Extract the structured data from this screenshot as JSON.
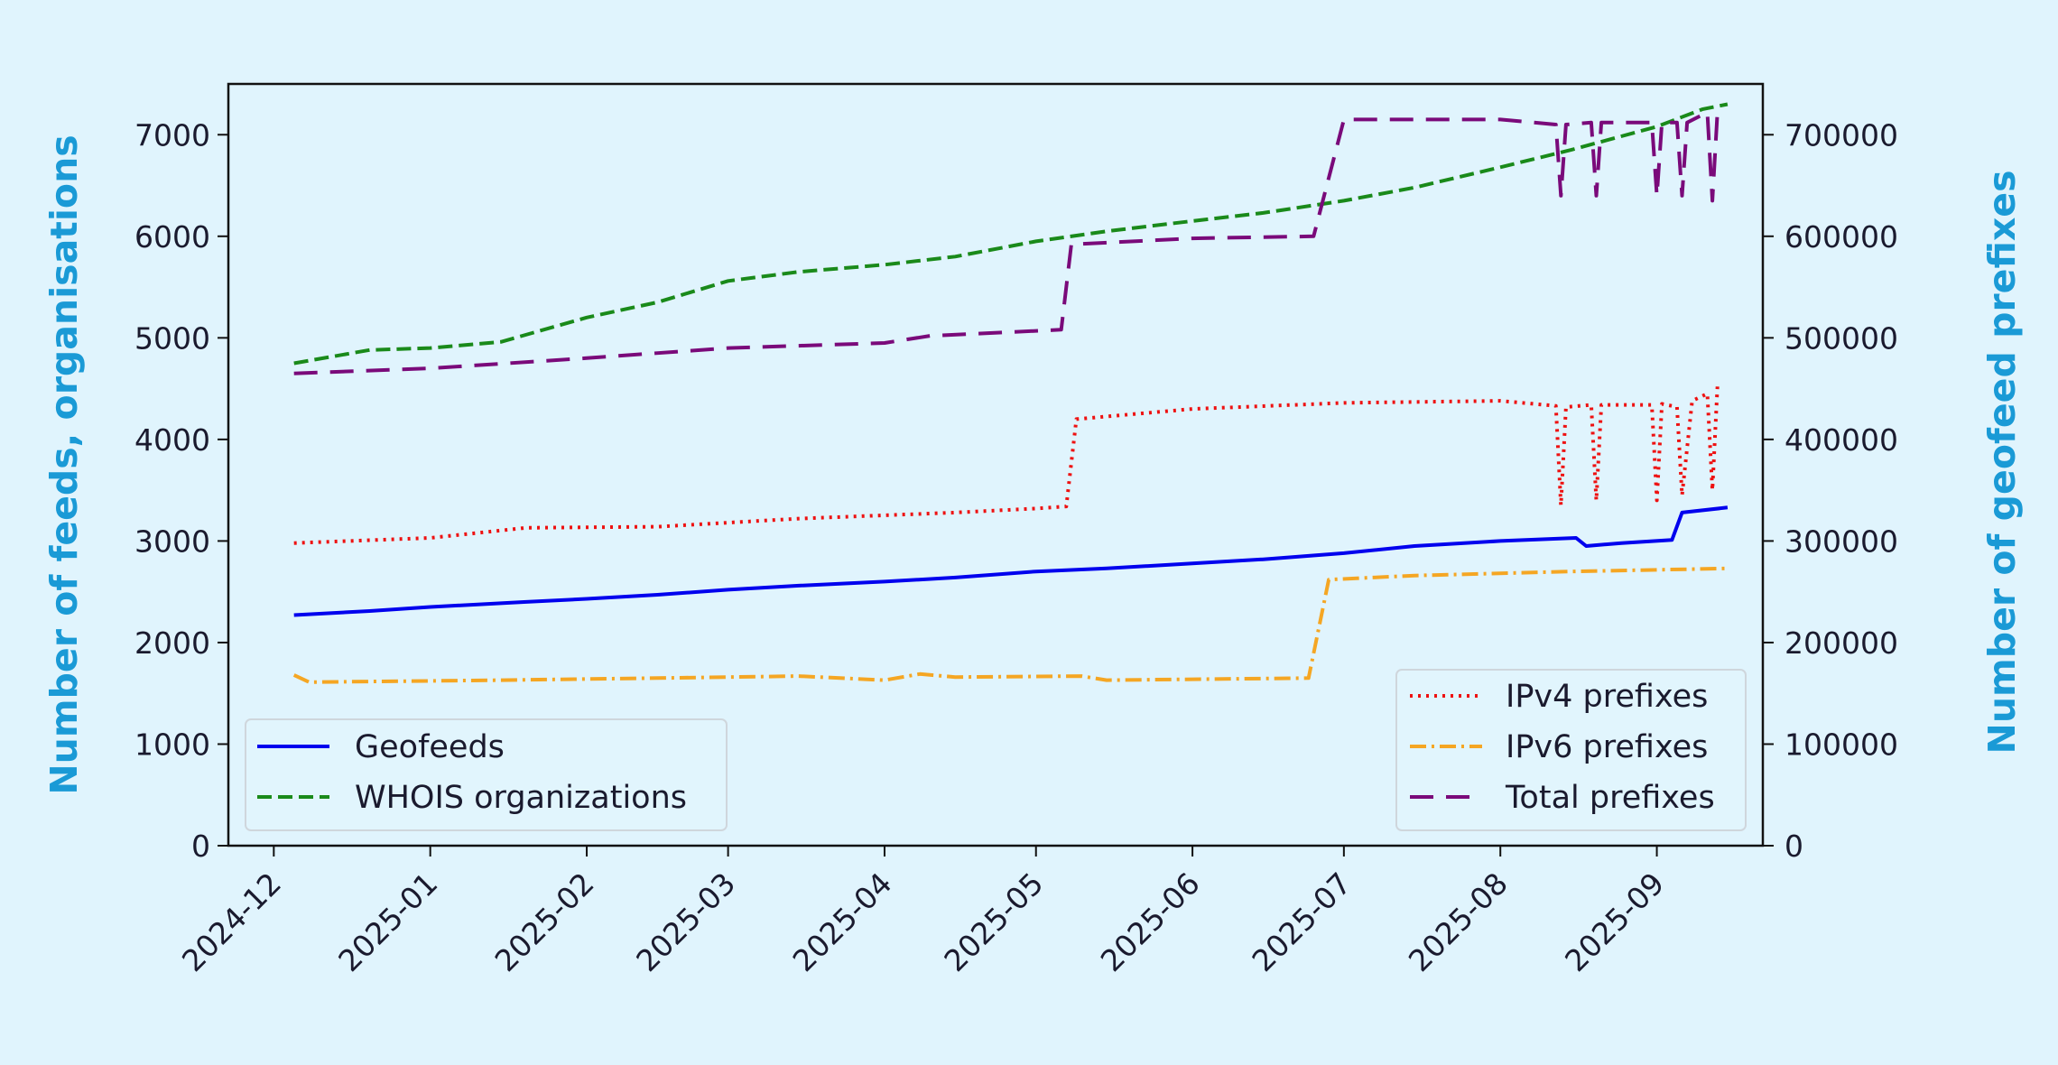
{
  "chart_data": {
    "type": "line",
    "ylabel_left": "Number of feeds, organisations",
    "ylabel_right": "Number of geofeed prefixes",
    "ylim_left": [
      0,
      7500
    ],
    "ylim_right": [
      0,
      750000
    ],
    "xlim": [
      "2024-11-22",
      "2025-09-22"
    ],
    "yticks_left": [
      0,
      1000,
      2000,
      3000,
      4000,
      5000,
      6000,
      7000
    ],
    "yticks_right": [
      0,
      100000,
      200000,
      300000,
      400000,
      500000,
      600000,
      700000
    ],
    "xticks": [
      "2024-12",
      "2025-01",
      "2025-02",
      "2025-03",
      "2025-04",
      "2025-05",
      "2025-06",
      "2025-07",
      "2025-08",
      "2025-09"
    ],
    "grid": false,
    "legend_left_placement": "lower-left",
    "legend_right_placement": "lower-right",
    "series": [
      {
        "name": "Geofeeds",
        "axis": "left",
        "color": "#0000ee",
        "style": "solid",
        "points": [
          [
            "2024-12-05",
            2270
          ],
          [
            "2024-12-20",
            2310
          ],
          [
            "2025-01-01",
            2350
          ],
          [
            "2025-01-20",
            2400
          ],
          [
            "2025-02-01",
            2430
          ],
          [
            "2025-02-15",
            2470
          ],
          [
            "2025-03-01",
            2520
          ],
          [
            "2025-03-15",
            2560
          ],
          [
            "2025-04-01",
            2600
          ],
          [
            "2025-04-15",
            2640
          ],
          [
            "2025-05-01",
            2700
          ],
          [
            "2025-05-15",
            2730
          ],
          [
            "2025-06-01",
            2780
          ],
          [
            "2025-06-15",
            2820
          ],
          [
            "2025-07-01",
            2880
          ],
          [
            "2025-07-15",
            2950
          ],
          [
            "2025-08-01",
            3000
          ],
          [
            "2025-08-16",
            3030
          ],
          [
            "2025-08-18",
            2950
          ],
          [
            "2025-08-25",
            2980
          ],
          [
            "2025-09-04",
            3010
          ],
          [
            "2025-09-06",
            3280
          ],
          [
            "2025-09-15",
            3330
          ]
        ]
      },
      {
        "name": "WHOIS organizations",
        "axis": "left",
        "color": "#1a8a1a",
        "style": "dashed",
        "points": [
          [
            "2024-12-05",
            4750
          ],
          [
            "2024-12-20",
            4880
          ],
          [
            "2025-01-01",
            4900
          ],
          [
            "2025-01-15",
            4960
          ],
          [
            "2025-02-01",
            5200
          ],
          [
            "2025-02-15",
            5350
          ],
          [
            "2025-03-01",
            5560
          ],
          [
            "2025-03-15",
            5650
          ],
          [
            "2025-04-01",
            5720
          ],
          [
            "2025-04-15",
            5800
          ],
          [
            "2025-05-01",
            5950
          ],
          [
            "2025-05-15",
            6050
          ],
          [
            "2025-06-01",
            6150
          ],
          [
            "2025-06-15",
            6230
          ],
          [
            "2025-07-01",
            6350
          ],
          [
            "2025-07-15",
            6480
          ],
          [
            "2025-08-01",
            6680
          ],
          [
            "2025-08-15",
            6850
          ],
          [
            "2025-09-01",
            7080
          ],
          [
            "2025-09-10",
            7250
          ],
          [
            "2025-09-15",
            7300
          ]
        ]
      },
      {
        "name": "IPv4 prefixes",
        "axis": "right",
        "color": "#ee1111",
        "style": "dotted",
        "points": [
          [
            "2024-12-05",
            298000
          ],
          [
            "2025-01-01",
            303000
          ],
          [
            "2025-01-20",
            313000
          ],
          [
            "2025-02-15",
            314000
          ],
          [
            "2025-03-15",
            322000
          ],
          [
            "2025-04-15",
            328000
          ],
          [
            "2025-05-01",
            332000
          ],
          [
            "2025-05-07",
            334000
          ],
          [
            "2025-05-09",
            420000
          ],
          [
            "2025-06-01",
            430000
          ],
          [
            "2025-07-01",
            436000
          ],
          [
            "2025-08-01",
            438000
          ],
          [
            "2025-08-12",
            433000
          ],
          [
            "2025-08-13",
            335000
          ],
          [
            "2025-08-14",
            432000
          ],
          [
            "2025-08-19",
            434000
          ],
          [
            "2025-08-20",
            340000
          ],
          [
            "2025-08-21",
            434000
          ],
          [
            "2025-08-31",
            434000
          ],
          [
            "2025-09-01",
            340000
          ],
          [
            "2025-09-02",
            435000
          ],
          [
            "2025-09-05",
            432000
          ],
          [
            "2025-09-06",
            345000
          ],
          [
            "2025-09-08",
            438000
          ],
          [
            "2025-09-11",
            445000
          ],
          [
            "2025-09-12",
            350000
          ],
          [
            "2025-09-13",
            452000
          ]
        ]
      },
      {
        "name": "IPv6 prefixes",
        "axis": "right",
        "color": "#f5a623",
        "style": "dashdot",
        "points": [
          [
            "2024-12-05",
            168000
          ],
          [
            "2024-12-08",
            161000
          ],
          [
            "2025-01-15",
            163000
          ],
          [
            "2025-02-15",
            165000
          ],
          [
            "2025-03-15",
            167000
          ],
          [
            "2025-04-01",
            163000
          ],
          [
            "2025-04-08",
            169000
          ],
          [
            "2025-04-15",
            166000
          ],
          [
            "2025-05-10",
            167000
          ],
          [
            "2025-05-15",
            163000
          ],
          [
            "2025-06-24",
            165000
          ],
          [
            "2025-06-28",
            262000
          ],
          [
            "2025-07-15",
            266000
          ],
          [
            "2025-08-15",
            270000
          ],
          [
            "2025-09-15",
            273000
          ]
        ]
      },
      {
        "name": "Total prefixes",
        "axis": "right",
        "color": "#7a0a7a",
        "style": "longdash",
        "points": [
          [
            "2024-12-05",
            465000
          ],
          [
            "2025-01-01",
            470000
          ],
          [
            "2025-02-01",
            480000
          ],
          [
            "2025-03-01",
            490000
          ],
          [
            "2025-04-01",
            495000
          ],
          [
            "2025-04-10",
            502000
          ],
          [
            "2025-05-06",
            508000
          ],
          [
            "2025-05-08",
            592000
          ],
          [
            "2025-06-01",
            598000
          ],
          [
            "2025-06-25",
            600000
          ],
          [
            "2025-07-01",
            715000
          ],
          [
            "2025-08-01",
            715000
          ],
          [
            "2025-08-12",
            710000
          ],
          [
            "2025-08-13",
            640000
          ],
          [
            "2025-08-14",
            710000
          ],
          [
            "2025-08-19",
            712000
          ],
          [
            "2025-08-20",
            640000
          ],
          [
            "2025-08-21",
            712000
          ],
          [
            "2025-08-31",
            712000
          ],
          [
            "2025-09-01",
            640000
          ],
          [
            "2025-09-02",
            712000
          ],
          [
            "2025-09-05",
            712000
          ],
          [
            "2025-09-06",
            640000
          ],
          [
            "2025-09-07",
            712000
          ],
          [
            "2025-09-11",
            722000
          ],
          [
            "2025-09-12",
            635000
          ],
          [
            "2025-09-13",
            722000
          ]
        ]
      }
    ]
  }
}
